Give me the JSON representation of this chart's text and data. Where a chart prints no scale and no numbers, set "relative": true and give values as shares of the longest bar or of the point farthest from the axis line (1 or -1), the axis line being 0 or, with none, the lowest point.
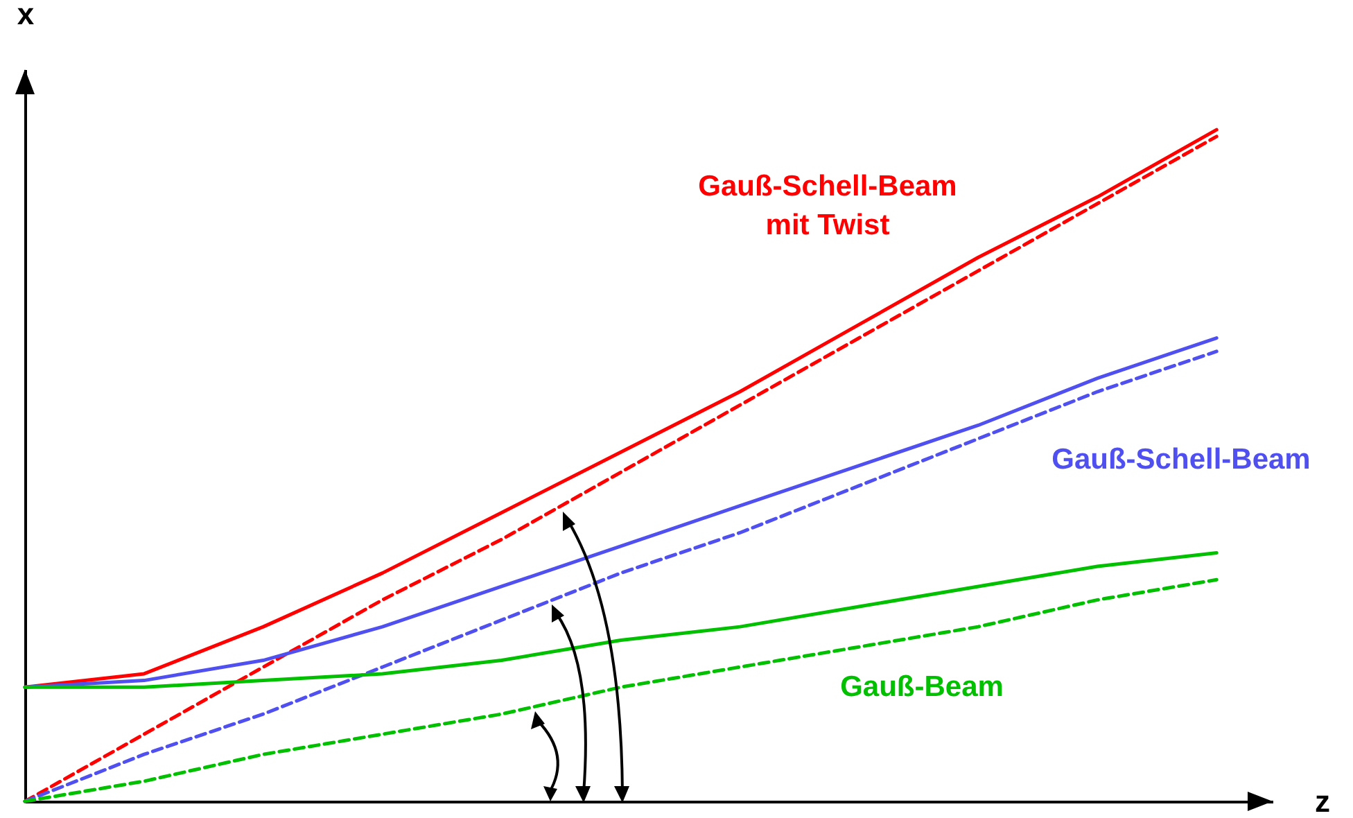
{
  "chart_data": {
    "type": "line",
    "relative": true,
    "xlabel": "z",
    "ylabel": "x",
    "grid": false,
    "categories": [
      null,
      null,
      null,
      null,
      null,
      null,
      null,
      null,
      null,
      null,
      null
    ],
    "series": [
      {
        "name": "Gauß-Schell-Beam mit Twist",
        "color": "#ff0000",
        "line_style": "solid",
        "values": [
          0.17,
          0.19,
          0.26,
          0.34,
          0.43,
          0.52,
          0.61,
          0.71,
          0.81,
          0.9,
          1.0
        ]
      },
      {
        "color": "#ff0000",
        "line_style": "dashed",
        "values": [
          0,
          0.1,
          0.2,
          0.3,
          0.39,
          0.49,
          0.59,
          0.69,
          0.79,
          0.89,
          0.99
        ]
      },
      {
        "name": "Gauß-Schell-Beam",
        "color": "#5050f0",
        "line_style": "solid",
        "values": [
          0.17,
          0.18,
          0.21,
          0.26,
          0.32,
          0.38,
          0.44,
          0.5,
          0.56,
          0.63,
          0.69
        ]
      },
      {
        "color": "#5050f0",
        "line_style": "dashed",
        "values": [
          0,
          0.07,
          0.13,
          0.2,
          0.27,
          0.34,
          0.4,
          0.47,
          0.54,
          0.61,
          0.67
        ]
      },
      {
        "name": "Gauß-Beam",
        "color": "#00c000",
        "line_style": "solid",
        "values": [
          0.17,
          0.17,
          0.18,
          0.19,
          0.21,
          0.24,
          0.26,
          0.29,
          0.32,
          0.35,
          0.37
        ]
      },
      {
        "color": "#00c000",
        "line_style": "dashed",
        "values": [
          0,
          0.03,
          0.07,
          0.1,
          0.13,
          0.17,
          0.2,
          0.23,
          0.26,
          0.3,
          0.33
        ]
      }
    ]
  }
}
